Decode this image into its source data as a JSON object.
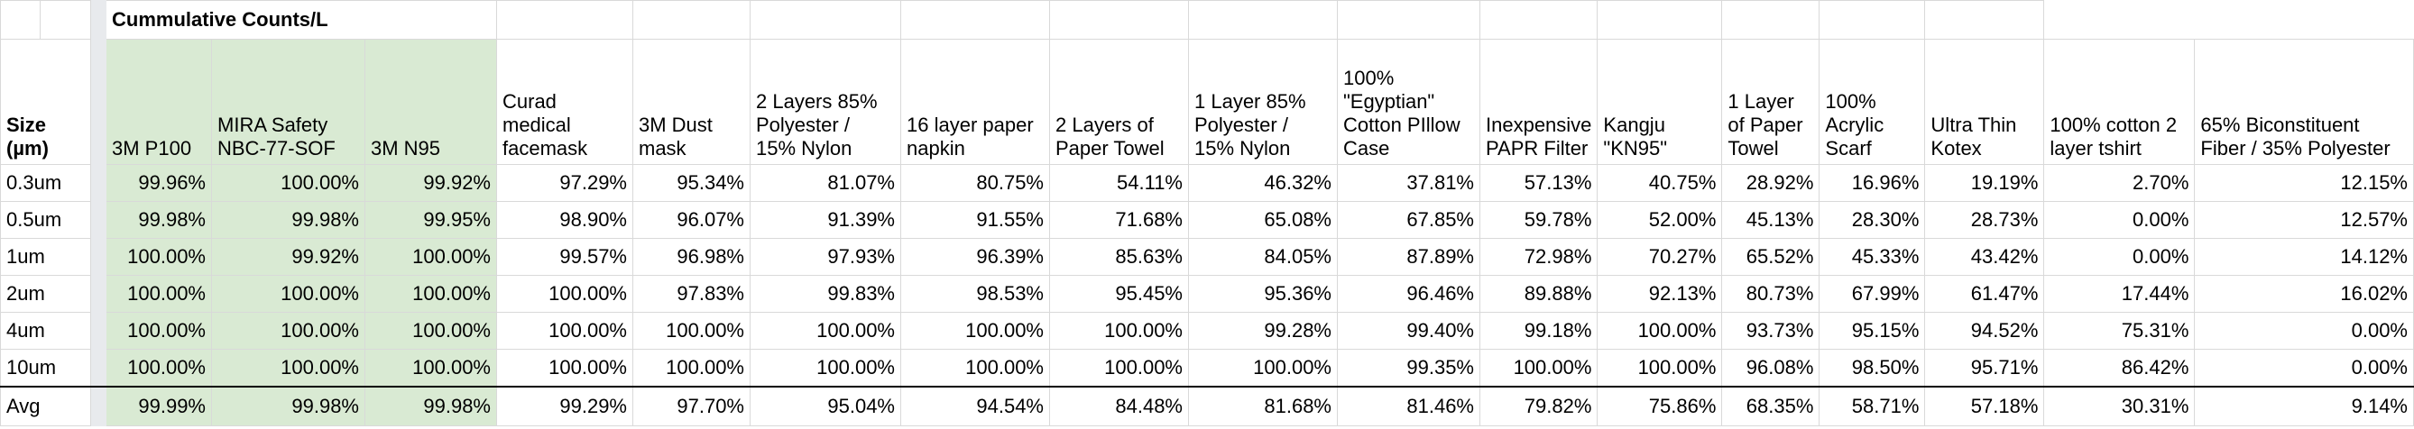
{
  "group_header": "Cummulative Counts/L",
  "size_header": "Size (µm)",
  "highlight_color": "#d9ead3",
  "columns": [
    "3M P100",
    "MIRA Safety NBC-77-SOF",
    "3M N95",
    "Curad medical facemask",
    "3M Dust mask",
    "2 Layers 85% Polyester / 15% Nylon",
    "16 layer paper napkin",
    "2 Layers of Paper Towel",
    "1 Layer 85% Polyester / 15% Nylon",
    "100% \"Egyptian\" Cotton PIllow Case",
    "Inexpensive PAPR Filter",
    "Kangju \"KN95\"",
    "1 Layer of Paper Towel",
    "100% Acrylic Scarf",
    "Ultra Thin Kotex",
    "100% cotton 2 layer tshirt",
    "65% Biconstituent Fiber / 35% Polyester"
  ],
  "rows": [
    {
      "size": "0.3um",
      "values": [
        "99.96%",
        "100.00%",
        "99.92%",
        "97.29%",
        "95.34%",
        "81.07%",
        "80.75%",
        "54.11%",
        "46.32%",
        "37.81%",
        "57.13%",
        "40.75%",
        "28.92%",
        "16.96%",
        "19.19%",
        "2.70%",
        "12.15%"
      ]
    },
    {
      "size": "0.5um",
      "values": [
        "99.98%",
        "99.98%",
        "99.95%",
        "98.90%",
        "96.07%",
        "91.39%",
        "91.55%",
        "71.68%",
        "65.08%",
        "67.85%",
        "59.78%",
        "52.00%",
        "45.13%",
        "28.30%",
        "28.73%",
        "0.00%",
        "12.57%"
      ]
    },
    {
      "size": "1um",
      "values": [
        "100.00%",
        "99.92%",
        "100.00%",
        "99.57%",
        "96.98%",
        "97.93%",
        "96.39%",
        "85.63%",
        "84.05%",
        "87.89%",
        "72.98%",
        "70.27%",
        "65.52%",
        "45.33%",
        "43.42%",
        "0.00%",
        "14.12%"
      ]
    },
    {
      "size": "2um",
      "values": [
        "100.00%",
        "100.00%",
        "100.00%",
        "100.00%",
        "97.83%",
        "99.83%",
        "98.53%",
        "95.45%",
        "95.36%",
        "96.46%",
        "89.88%",
        "92.13%",
        "80.73%",
        "67.99%",
        "61.47%",
        "17.44%",
        "16.02%"
      ]
    },
    {
      "size": "4um",
      "values": [
        "100.00%",
        "100.00%",
        "100.00%",
        "100.00%",
        "100.00%",
        "100.00%",
        "100.00%",
        "100.00%",
        "99.28%",
        "99.40%",
        "99.18%",
        "100.00%",
        "93.73%",
        "95.15%",
        "94.52%",
        "75.31%",
        "0.00%"
      ]
    },
    {
      "size": "10um",
      "values": [
        "100.00%",
        "100.00%",
        "100.00%",
        "100.00%",
        "100.00%",
        "100.00%",
        "100.00%",
        "100.00%",
        "100.00%",
        "99.35%",
        "100.00%",
        "100.00%",
        "96.08%",
        "98.50%",
        "95.71%",
        "86.42%",
        "0.00%"
      ]
    }
  ],
  "avg": {
    "label": "Avg",
    "values": [
      "99.99%",
      "99.98%",
      "99.98%",
      "99.29%",
      "97.70%",
      "95.04%",
      "94.54%",
      "84.48%",
      "81.68%",
      "81.46%",
      "79.82%",
      "75.86%",
      "68.35%",
      "58.71%",
      "57.18%",
      "30.31%",
      "9.14%"
    ]
  }
}
